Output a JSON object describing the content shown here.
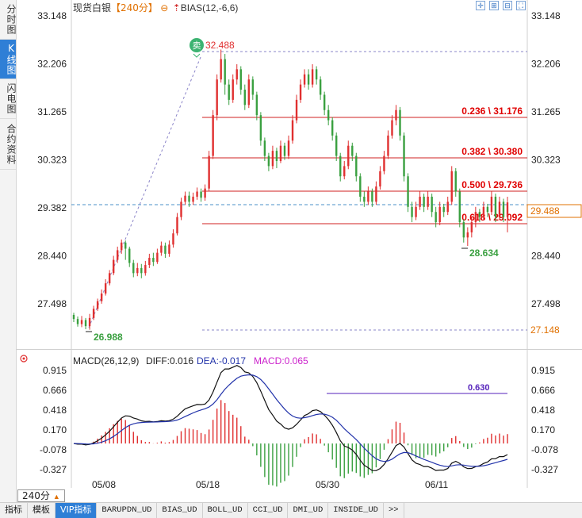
{
  "side_tabs": [
    {
      "label": "分时图",
      "active": false
    },
    {
      "label": "K线图",
      "active": true
    },
    {
      "label": "闪电图",
      "active": false
    },
    {
      "label": "合约资料",
      "active": false
    }
  ],
  "header": {
    "title": "现货白银",
    "period": "【240分】",
    "indicator": "BIAS(12,-6,6)"
  },
  "main_chart": {
    "y_ticks": [
      "33.148",
      "32.206",
      "31.265",
      "30.323",
      "29.382",
      "28.440",
      "27.498"
    ],
    "current_price": "29.488",
    "lower_level": "27.148",
    "high_label": "32.488",
    "low_label_1": "26.988",
    "low_label_2": "28.634",
    "sell_badge": "卖",
    "fib_levels": [
      {
        "label": "0.236 \\ 31.176",
        "price": 31.176
      },
      {
        "label": "0.382 \\ 30.380",
        "price": 30.38
      },
      {
        "label": "0.500 \\ 29.736",
        "price": 29.736
      },
      {
        "label": "0.618 \\ 29.092",
        "price": 29.092
      }
    ]
  },
  "macd_panel": {
    "title": "MACD(26,12,9)",
    "diff": "DIFF:0.016",
    "dea": "DEA:-0.017",
    "macd": "MACD:0.065",
    "y_ticks": [
      "0.915",
      "0.666",
      "0.418",
      "0.170",
      "-0.078",
      "-0.327"
    ],
    "annotation": "0.630"
  },
  "x_axis": {
    "labels": [
      "05/08",
      "05/18",
      "05/30",
      "06/11"
    ]
  },
  "bottom_bar": {
    "period_button": "240分",
    "tabs": [
      {
        "label": "指标",
        "active": false
      },
      {
        "label": "模板",
        "active": false
      },
      {
        "label": "VIP指标",
        "active": true
      },
      {
        "label": "BARUPDN_UD",
        "active": false
      },
      {
        "label": "BIAS_UD",
        "active": false
      },
      {
        "label": "BOLL_UD",
        "active": false
      },
      {
        "label": "CCI_UD",
        "active": false
      },
      {
        "label": "DMI_UD",
        "active": false
      },
      {
        "label": "INSIDE_UD",
        "active": false
      },
      {
        "label": ">>",
        "active": false
      }
    ]
  },
  "colors": {
    "up": "#e03030",
    "down": "#3aa040",
    "fib_line": "#d02020",
    "dash_line": "#8a84c8",
    "price_line": "#4a90c8",
    "accent": "#2f7fd6"
  },
  "chart_data": {
    "type": "candlestick",
    "price_range": [
      26.988,
      32.488
    ],
    "series_note_free": true,
    "candles": [
      [
        27.28,
        27.2,
        27.32,
        27.14
      ],
      [
        27.2,
        27.1,
        27.25,
        27.05
      ],
      [
        27.1,
        27.18,
        27.26,
        27.04
      ],
      [
        27.18,
        27.06,
        27.22,
        27.0
      ],
      [
        27.06,
        27.22,
        27.3,
        26.99
      ],
      [
        27.22,
        27.4,
        27.46,
        27.18
      ],
      [
        27.4,
        27.55,
        27.6,
        27.36
      ],
      [
        27.55,
        27.7,
        27.78,
        27.5
      ],
      [
        27.7,
        27.9,
        27.98,
        27.66
      ],
      [
        27.9,
        28.1,
        28.16,
        27.86
      ],
      [
        28.1,
        28.36,
        28.44,
        28.06
      ],
      [
        28.36,
        28.55,
        28.62,
        28.3
      ],
      [
        28.55,
        28.7,
        28.76,
        28.48
      ],
      [
        28.7,
        28.58,
        28.74,
        28.36
      ],
      [
        28.58,
        28.3,
        28.62,
        28.22
      ],
      [
        28.3,
        28.1,
        28.36,
        28.02
      ],
      [
        28.1,
        28.2,
        28.3,
        28.04
      ],
      [
        28.2,
        28.1,
        28.28,
        28.0
      ],
      [
        28.1,
        28.26,
        28.34,
        28.05
      ],
      [
        28.26,
        28.4,
        28.48,
        28.2
      ],
      [
        28.4,
        28.32,
        28.5,
        28.24
      ],
      [
        28.32,
        28.5,
        28.58,
        28.28
      ],
      [
        28.5,
        28.64,
        28.72,
        28.44
      ],
      [
        28.64,
        28.48,
        28.7,
        28.4
      ],
      [
        28.48,
        28.66,
        28.74,
        28.42
      ],
      [
        28.66,
        28.88,
        28.96,
        28.6
      ],
      [
        28.88,
        29.2,
        29.28,
        28.84
      ],
      [
        29.2,
        29.5,
        29.58,
        29.14
      ],
      [
        29.5,
        29.62,
        29.7,
        29.44
      ],
      [
        29.62,
        29.5,
        29.7,
        29.4
      ],
      [
        29.5,
        29.6,
        29.68,
        29.44
      ],
      [
        29.6,
        29.7,
        29.78,
        29.54
      ],
      [
        29.7,
        29.58,
        29.76,
        29.5
      ],
      [
        29.58,
        29.76,
        29.84,
        29.52
      ],
      [
        29.76,
        30.4,
        30.5,
        29.7
      ],
      [
        30.4,
        31.2,
        31.3,
        30.34
      ],
      [
        31.2,
        31.9,
        32.0,
        31.1
      ],
      [
        31.9,
        32.3,
        32.488,
        31.84
      ],
      [
        32.3,
        31.8,
        32.4,
        31.6
      ],
      [
        31.8,
        31.5,
        31.9,
        31.4
      ],
      [
        31.5,
        31.9,
        32.0,
        31.44
      ],
      [
        31.9,
        32.1,
        32.2,
        31.8
      ],
      [
        32.1,
        31.7,
        32.16,
        31.6
      ],
      [
        31.7,
        31.4,
        31.8,
        31.3
      ],
      [
        31.4,
        31.9,
        32.0,
        31.34
      ],
      [
        31.9,
        31.6,
        31.96,
        31.5
      ],
      [
        31.6,
        31.2,
        31.66,
        31.1
      ],
      [
        31.2,
        30.7,
        31.26,
        30.6
      ],
      [
        30.7,
        30.4,
        30.76,
        30.3
      ],
      [
        30.4,
        30.2,
        30.46,
        30.1
      ],
      [
        30.2,
        30.5,
        30.6,
        30.14
      ],
      [
        30.5,
        30.3,
        30.56,
        30.16
      ],
      [
        30.3,
        30.6,
        30.7,
        30.26
      ],
      [
        30.6,
        30.4,
        30.66,
        30.32
      ],
      [
        30.4,
        30.7,
        30.8,
        30.34
      ],
      [
        30.7,
        31.1,
        31.2,
        30.64
      ],
      [
        31.1,
        31.5,
        31.6,
        31.04
      ],
      [
        31.5,
        31.8,
        31.9,
        31.44
      ],
      [
        31.8,
        32.0,
        32.1,
        31.74
      ],
      [
        32.0,
        31.8,
        32.1,
        31.7
      ],
      [
        31.8,
        32.1,
        32.2,
        31.74
      ],
      [
        32.1,
        31.9,
        32.16,
        31.8
      ],
      [
        31.9,
        31.6,
        31.96,
        31.5
      ],
      [
        31.6,
        31.3,
        31.66,
        31.2
      ],
      [
        31.3,
        31.1,
        31.4,
        31.0
      ],
      [
        31.1,
        30.8,
        31.16,
        30.7
      ],
      [
        30.8,
        30.4,
        30.86,
        30.3
      ],
      [
        30.4,
        30.0,
        30.46,
        29.9
      ],
      [
        30.0,
        30.2,
        30.3,
        29.94
      ],
      [
        30.2,
        30.6,
        30.7,
        30.14
      ],
      [
        30.6,
        30.4,
        30.66,
        30.3
      ],
      [
        30.4,
        30.0,
        30.46,
        29.9
      ],
      [
        30.0,
        29.6,
        30.06,
        29.5
      ],
      [
        29.6,
        29.5,
        29.7,
        29.4
      ],
      [
        29.5,
        29.7,
        29.8,
        29.44
      ],
      [
        29.7,
        29.5,
        29.76,
        29.4
      ],
      [
        29.5,
        29.8,
        29.9,
        29.44
      ],
      [
        29.8,
        30.1,
        30.2,
        29.74
      ],
      [
        30.1,
        30.4,
        30.5,
        30.04
      ],
      [
        30.4,
        30.8,
        30.9,
        30.34
      ],
      [
        30.8,
        31.1,
        31.2,
        30.74
      ],
      [
        31.1,
        31.3,
        31.4,
        31.0
      ],
      [
        31.3,
        30.8,
        31.36,
        30.7
      ],
      [
        30.8,
        30.0,
        30.86,
        29.9
      ],
      [
        30.0,
        29.4,
        30.06,
        29.3
      ],
      [
        29.4,
        29.2,
        29.5,
        29.1
      ],
      [
        29.2,
        29.4,
        29.5,
        29.14
      ],
      [
        29.4,
        29.6,
        29.7,
        29.34
      ],
      [
        29.6,
        29.4,
        29.66,
        29.3
      ],
      [
        29.4,
        29.6,
        29.7,
        29.34
      ],
      [
        29.6,
        29.3,
        29.66,
        29.2
      ],
      [
        29.3,
        29.1,
        29.4,
        29.0
      ],
      [
        29.1,
        29.4,
        29.5,
        29.04
      ],
      [
        29.4,
        29.3,
        29.46,
        29.2
      ],
      [
        29.3,
        29.5,
        29.6,
        29.24
      ],
      [
        29.5,
        30.1,
        30.2,
        29.44
      ],
      [
        30.1,
        29.7,
        30.16,
        29.6
      ],
      [
        29.7,
        29.1,
        29.76,
        29.0
      ],
      [
        29.1,
        28.8,
        29.16,
        28.7
      ],
      [
        28.8,
        28.9,
        29.0,
        28.634
      ],
      [
        28.9,
        29.1,
        29.2,
        28.8
      ],
      [
        29.1,
        29.3,
        29.4,
        29.0
      ],
      [
        29.3,
        29.2,
        29.36,
        29.1
      ],
      [
        29.2,
        29.4,
        29.5,
        29.14
      ],
      [
        29.4,
        29.3,
        29.46,
        29.2
      ],
      [
        29.3,
        29.6,
        29.7,
        29.24
      ],
      [
        29.6,
        29.2,
        29.66,
        29.1
      ],
      [
        29.2,
        29.5,
        29.6,
        29.14
      ],
      [
        29.5,
        29.2,
        29.56,
        29.1
      ],
      [
        29.2,
        29.488,
        29.6,
        28.9
      ]
    ]
  }
}
